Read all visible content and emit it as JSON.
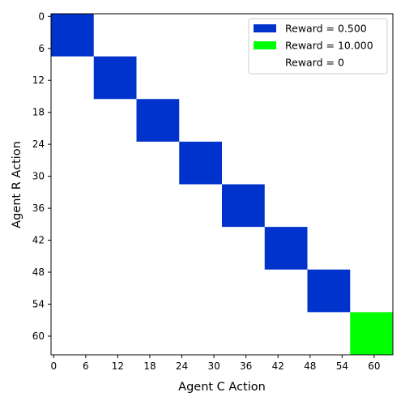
{
  "chart_data": {
    "type": "heatmap",
    "xlabel": "Agent C Action",
    "ylabel": "Agent R Action",
    "grid_size": 64,
    "x_ticks": [
      0,
      6,
      12,
      18,
      24,
      30,
      36,
      42,
      48,
      54,
      60
    ],
    "y_ticks": [
      0,
      6,
      12,
      18,
      24,
      30,
      36,
      42,
      48,
      54,
      60
    ],
    "background_value": 0,
    "legend_position": "top-right",
    "legend": [
      {
        "label": "Reward = 0.500",
        "value": 0.5,
        "color": "#0033cc"
      },
      {
        "label": "Reward = 10.000",
        "value": 10.0,
        "color": "#00ff00"
      },
      {
        "label": "Reward = 0",
        "value": 0,
        "color": "#ffffff"
      }
    ],
    "blocks": [
      {
        "x_start": 0,
        "x_end": 7,
        "y_start": 0,
        "y_end": 7,
        "value": 0.5
      },
      {
        "x_start": 8,
        "x_end": 15,
        "y_start": 8,
        "y_end": 15,
        "value": 0.5
      },
      {
        "x_start": 16,
        "x_end": 23,
        "y_start": 16,
        "y_end": 23,
        "value": 0.5
      },
      {
        "x_start": 24,
        "x_end": 31,
        "y_start": 24,
        "y_end": 31,
        "value": 0.5
      },
      {
        "x_start": 32,
        "x_end": 39,
        "y_start": 32,
        "y_end": 39,
        "value": 0.5
      },
      {
        "x_start": 40,
        "x_end": 47,
        "y_start": 40,
        "y_end": 47,
        "value": 0.5
      },
      {
        "x_start": 48,
        "x_end": 55,
        "y_start": 48,
        "y_end": 55,
        "value": 0.5
      },
      {
        "x_start": 56,
        "x_end": 63,
        "y_start": 56,
        "y_end": 63,
        "value": 10.0
      }
    ]
  }
}
